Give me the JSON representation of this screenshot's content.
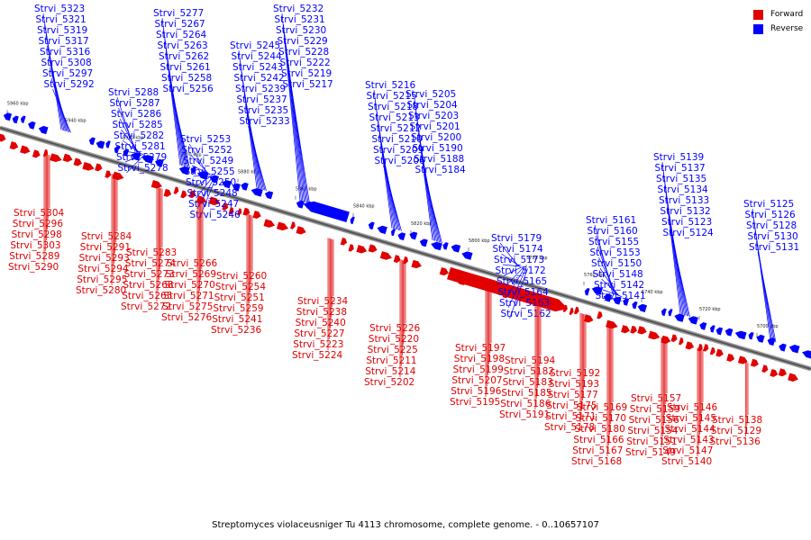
{
  "caption": "Streptomyces violaceusniger Tu 4113 chromosome, complete genome. - 0..10657107",
  "legend": [
    {
      "label": "Forward",
      "color": "#e00000"
    },
    {
      "label": "Reverse",
      "color": "#0000ff"
    }
  ],
  "colors": {
    "forward": "#e00000",
    "reverse": "#0000ff",
    "axis": "#555555"
  },
  "ticks": [
    "5960 kbp",
    "5940 kbp",
    "5920 kbp",
    "5900 kbp",
    "5880 kbp",
    "5860 kbp",
    "5840 kbp",
    "5820 kbp",
    "5800 kbp",
    "5780 kbp",
    "5760 kbp",
    "5740 kbp",
    "5720 kbp",
    "5700 kbp"
  ],
  "reverse_labels": [
    "Strvi_5323",
    "Strvi_5321",
    "Strvi_5319",
    "Strvi_5317",
    "Strvi_5316",
    "Strvi_5308",
    "Strvi_5297",
    "Strvi_5292",
    "Strvi_5288",
    "Strvi_5287",
    "Strvi_5286",
    "Strvi_5285",
    "Strvi_5282",
    "Strvi_5281",
    "Strvi_5279",
    "Strvi_5278",
    "Strvi_5277",
    "Strvi_5267",
    "Strvi_5264",
    "Strvi_5263",
    "Strvi_5262",
    "Strvi_5261",
    "Strvi_5258",
    "Strvi_5256",
    "Strvi_5253",
    "Strvi_5252",
    "Strvi_5249",
    "Strvi_5255",
    "Strvi_5250",
    "Strvi_5248",
    "Strvi_5247",
    "Strvi_5246",
    "Strvi_5245",
    "Strvi_5244",
    "Strvi_5243",
    "Strvi_5242",
    "Strvi_5239",
    "Strvi_5237",
    "Strvi_5235",
    "Strvi_5233",
    "Strvi_5232",
    "Strvi_5231",
    "Strvi_5230",
    "Strvi_5229",
    "Strvi_5228",
    "Strvi_5222",
    "Strvi_5219",
    "Strvi_5217",
    "Strvi_5216",
    "Strvi_5215",
    "Strvi_5218",
    "Strvi_5213",
    "Strvi_5212",
    "Strvi_5210",
    "Strvi_5209",
    "Strvi_5206",
    "Strvi_5205",
    "Strvi_5204",
    "Strvi_5203",
    "Strvi_5201",
    "Strvi_5200",
    "Strvi_5190",
    "Strvi_5188",
    "Strvi_5184",
    "Strvi_5179",
    "Strvi_5174",
    "Strvi_5173",
    "Strvi_5172",
    "Strvi_5165",
    "Strvi_5164",
    "Strvi_5163",
    "Strvi_5162",
    "Strvi_5161",
    "Strvi_5160",
    "Strvi_5155",
    "Strvi_5153",
    "Strvi_5150",
    "Strvi_5148",
    "Strvi_5142",
    "Strvi_5141",
    "Strvi_5139",
    "Strvi_5137",
    "Strvi_5135",
    "Strvi_5134",
    "Strvi_5133",
    "Strvi_5132",
    "Strvi_5123",
    "Strvi_5124",
    "Strvi_5125",
    "Strvi_5126",
    "Strvi_5128",
    "Strvi_5130",
    "Strvi_5131"
  ],
  "forward_labels": [
    "Strvi_5304",
    "Strvi_5296",
    "Strvi_5298",
    "Strvi_5303",
    "Strvi_5289",
    "Strvi_5290",
    "Strvi_5284",
    "Strvi_5291",
    "Strvi_5293",
    "Strvi_5294",
    "Strvi_5295",
    "Strvi_5280",
    "Strvi_5283",
    "Strvi_5274",
    "Strvi_5273",
    "Strvi_5268",
    "Strvi_5265",
    "Strvi_5272",
    "Strvi_5266",
    "Strvi_5269",
    "Strvi_5270",
    "Strvi_5271",
    "Strvi_5275",
    "Strvi_5276",
    "Strvi_5260",
    "Strvi_5254",
    "Strvi_5251",
    "Strvi_5259",
    "Strvi_5241",
    "Strvi_5236",
    "Strvi_5234",
    "Strvi_5238",
    "Strvi_5240",
    "Strvi_5227",
    "Strvi_5223",
    "Strvi_5224",
    "Strvi_5226",
    "Strvi_5220",
    "Strvi_5225",
    "Strvi_5211",
    "Strvi_5214",
    "Strvi_5202",
    "Strvi_5197",
    "Strvi_5198",
    "Strvi_5199",
    "Strvi_5207",
    "Strvi_5196",
    "Strvi_5195",
    "Strvi_5194",
    "Strvi_5182",
    "Strvi_5183",
    "Strvi_5185",
    "Strvi_5186",
    "Strvi_5191",
    "Strvi_5192",
    "Strvi_5193",
    "Strvi_5177",
    "Strvi_5175",
    "Strvi_5171",
    "Strvi_5178",
    "Strvi_5169",
    "Strvi_5170",
    "Strvi_5180",
    "Strvi_5166",
    "Strvi_5167",
    "Strvi_5168",
    "Strvi_5157",
    "Strvi_5159",
    "Strvi_5156",
    "Strvi_5154",
    "Strvi_5151",
    "Strvi_5149",
    "Strvi_5146",
    "Strvi_5145",
    "Strvi_5144",
    "Strvi_5143",
    "Strvi_5147",
    "Strvi_5140",
    "Strvi_5138",
    "Strvi_5129",
    "Strvi_5136"
  ]
}
